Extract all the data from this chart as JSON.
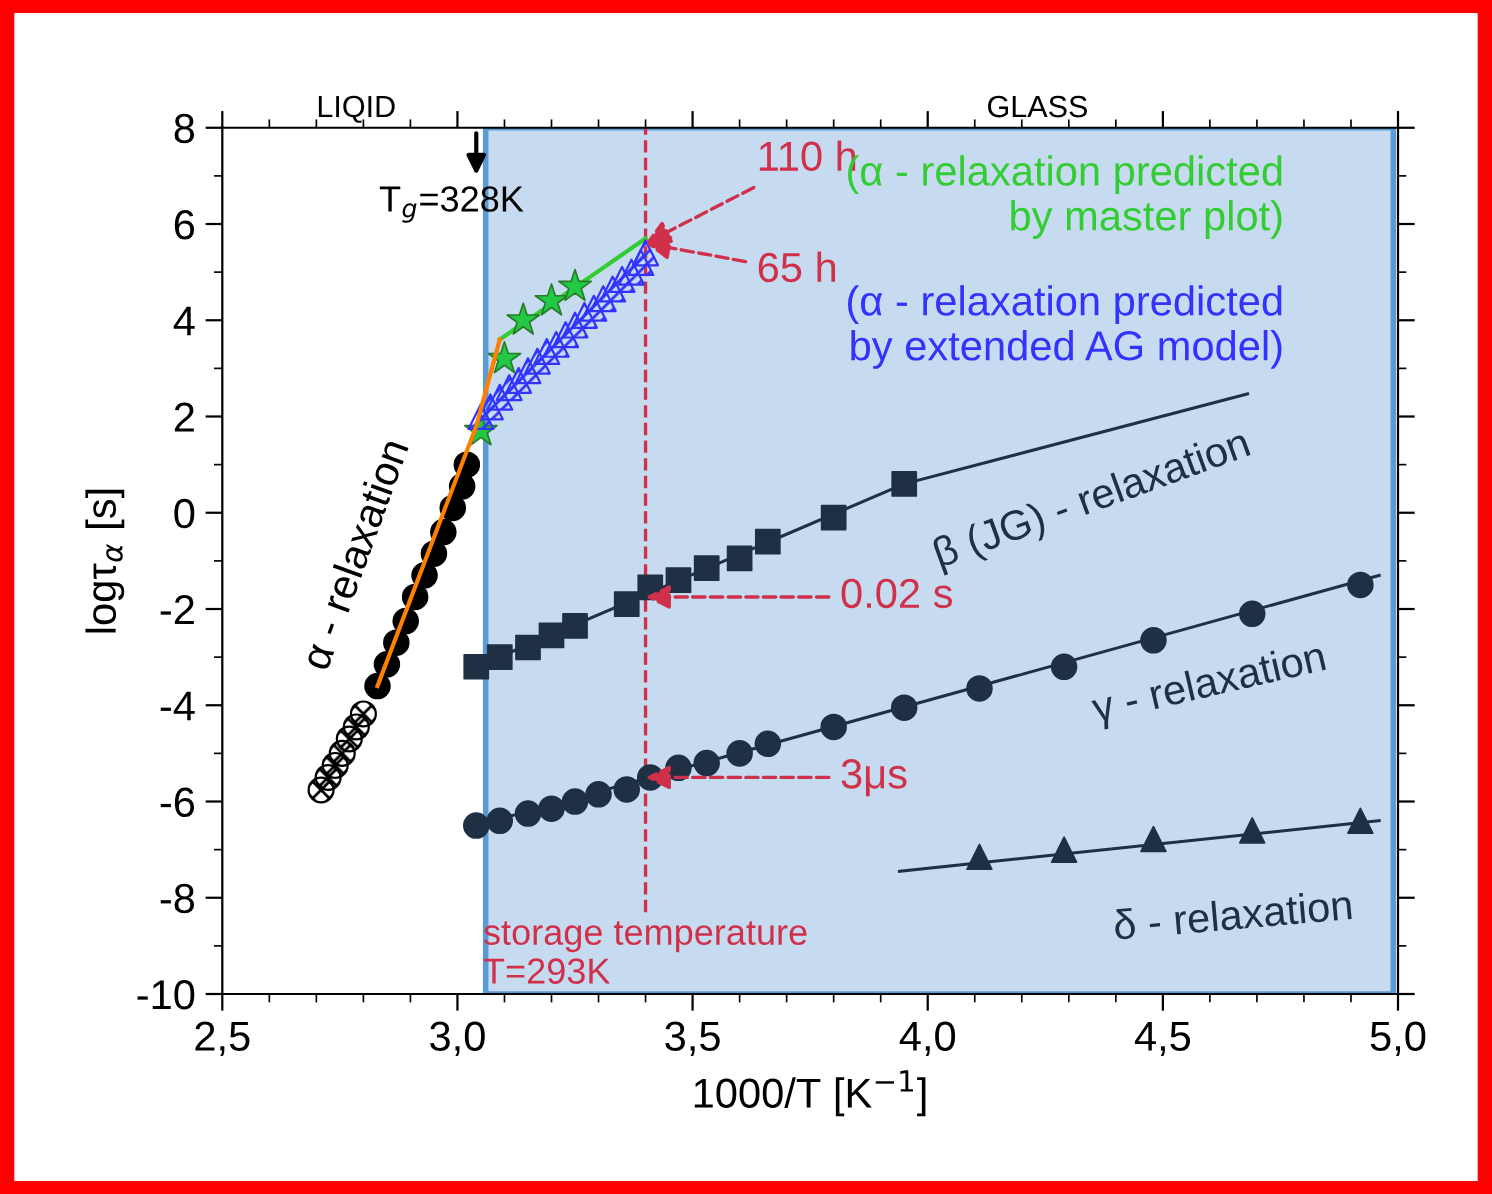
{
  "chart_data": {
    "type": "scatter",
    "xlabel": "1000/T [K$^{−1}$]",
    "ylabel": "logτ$_{α}$ [s]",
    "xlim": [
      2.5,
      5.0
    ],
    "ylim": [
      -10,
      8
    ],
    "xticks": [
      {
        "value": 2.5,
        "label": "2,5"
      },
      {
        "value": 3.0,
        "label": "3,0"
      },
      {
        "value": 3.5,
        "label": "3,5"
      },
      {
        "value": 4.0,
        "label": "4,0"
      },
      {
        "value": 4.5,
        "label": "4,5"
      },
      {
        "value": 5.0,
        "label": "5,0"
      }
    ],
    "yticks": [
      -10,
      -8,
      -6,
      -4,
      -2,
      0,
      2,
      4,
      6,
      8
    ],
    "grid": false,
    "legend": false,
    "series": [
      {
        "marker": "circle",
        "color": "#000000",
        "x": [
          2.83,
          2.85,
          2.87,
          2.89,
          2.91,
          2.93,
          2.95,
          2.97,
          2.99,
          3.01,
          3.02
        ],
        "values": [
          -3.6,
          -3.15,
          -2.7,
          -2.25,
          -1.75,
          -1.3,
          -0.85,
          -0.4,
          0.1,
          0.55,
          1.0
        ]
      },
      {
        "marker": "circle",
        "color": "#000000",
        "x": [
          2.71,
          2.725,
          2.74,
          2.755,
          2.77,
          2.785,
          2.8
        ],
        "values": [
          -5.76,
          -5.5,
          -5.25,
          -5.0,
          -4.7,
          -4.45,
          -4.18
        ]
      },
      {
        "type": "line",
        "color": "#ff8000",
        "x": [
          2.83,
          3.04,
          3.09
        ],
        "values": [
          -3.6,
          1.8,
          3.6
        ]
      },
      {
        "marker": "star",
        "color": "#22c944",
        "x": [
          3.05,
          3.1,
          3.14,
          3.2,
          3.25
        ],
        "values": [
          1.7,
          3.2,
          4.0,
          4.4,
          4.7
        ]
      },
      {
        "type": "line",
        "color": "#33cc33",
        "x": [
          3.09,
          3.4
        ],
        "values": [
          3.6,
          5.7
        ]
      },
      {
        "marker": "triangle",
        "color": "#3333ff",
        "x": [
          3.05,
          3.07,
          3.09,
          3.11,
          3.13,
          3.15,
          3.17,
          3.19,
          3.21,
          3.23,
          3.25,
          3.27,
          3.29,
          3.31,
          3.33,
          3.35,
          3.37,
          3.39,
          3.4
        ],
        "values": [
          2.0,
          2.2,
          2.4,
          2.6,
          2.75,
          2.95,
          3.15,
          3.35,
          3.5,
          3.7,
          3.9,
          4.1,
          4.25,
          4.45,
          4.65,
          4.85,
          5.0,
          5.2,
          5.4
        ]
      },
      {
        "type": "line",
        "color": "#1f3044",
        "x": [
          3.04,
          3.4,
          3.95,
          4.68
        ],
        "values": [
          -3.2,
          -1.7,
          0.6,
          2.47
        ]
      },
      {
        "marker": "square",
        "color": "#1f3044",
        "x": [
          3.04,
          3.09,
          3.15,
          3.2,
          3.25,
          3.36,
          3.41,
          3.47,
          3.53,
          3.6,
          3.66,
          3.8,
          3.95
        ],
        "values": [
          -3.2,
          -3.0,
          -2.8,
          -2.55,
          -2.35,
          -1.9,
          -1.55,
          -1.4,
          -1.15,
          -0.95,
          -0.6,
          -0.1,
          0.6
        ]
      },
      {
        "type": "line",
        "color": "#1f3044",
        "x": [
          3.04,
          4.96
        ],
        "values": [
          -6.5,
          -1.3
        ]
      },
      {
        "marker": "circle",
        "color": "#1f3044",
        "x": [
          3.04,
          3.09,
          3.15,
          3.2,
          3.25,
          3.3,
          3.36,
          3.41,
          3.47,
          3.53,
          3.6,
          3.66,
          3.8,
          3.95,
          4.11,
          4.29,
          4.48,
          4.69,
          4.92
        ],
        "values": [
          -6.5,
          -6.4,
          -6.25,
          -6.15,
          -6.0,
          -5.85,
          -5.75,
          -5.5,
          -5.3,
          -5.2,
          -5.0,
          -4.8,
          -4.45,
          -4.05,
          -3.65,
          -3.2,
          -2.65,
          -2.1,
          -1.5
        ]
      },
      {
        "type": "line",
        "color": "#1f3044",
        "x": [
          3.94,
          4.96
        ],
        "values": [
          -7.45,
          -6.4
        ]
      },
      {
        "marker": "triangle",
        "color": "#1f3044",
        "x": [
          4.11,
          4.29,
          4.48,
          4.69,
          4.92
        ],
        "values": [
          -7.15,
          -7.0,
          -6.78,
          -6.6,
          -6.4
        ]
      }
    ],
    "bands": [
      {
        "axis": "x",
        "from": 3.06,
        "to": 4.99,
        "color": "#c6dbef"
      }
    ],
    "ref_lines": [
      {
        "axis": "x",
        "value": 3.4,
        "color": "#d0304a",
        "line_style": "dashed"
      }
    ],
    "annotations": [
      "LIQID",
      "GLASS",
      {
        "text": "T$_{g}$=328K",
        "x": 3.04,
        "y": 6.9
      },
      {
        "text": "110 h",
        "x": 3.4,
        "y": 5.6
      },
      "(α - relaxation predicted\nby master plot)",
      {
        "text": "65 h",
        "x": 3.4,
        "y": 5.6
      },
      "(α - relaxation predicted\nby extended AG model)",
      {
        "text": "0.02 s",
        "x": 3.4,
        "y": -1.75
      },
      {
        "text": "3μs",
        "x": 3.4,
        "y": -5.5
      },
      {
        "text": "storage temperature\nT=293K",
        "x": 3.4,
        "y": -8.2
      },
      {
        "text": "α - relaxation",
        "x": 2.93,
        "y": -1.0
      },
      {
        "text": "β (JG) - relaxation",
        "x": 4.35,
        "y": 1.63
      },
      {
        "text": "γ - relaxation",
        "x": 4.6,
        "y": -2.2
      },
      {
        "text": "δ - relaxation",
        "x": 4.65,
        "y": -6.7
      }
    ]
  }
}
